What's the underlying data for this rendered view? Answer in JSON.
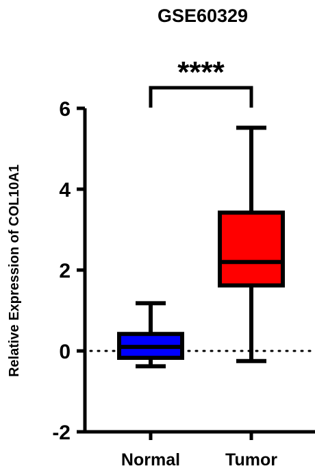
{
  "chart_data": {
    "type": "box",
    "title": "GSE60329",
    "xlabel": "",
    "ylabel": "Relative Expression of COL10A1",
    "ylim": [
      -2,
      6
    ],
    "yticks": [
      "6",
      "4",
      "2",
      "0",
      "-2"
    ],
    "ytick_values": [
      6,
      4,
      2,
      0,
      -2
    ],
    "categories": [
      "Normal",
      "Tumor"
    ],
    "series": [
      {
        "category": "Normal",
        "min": -0.38,
        "q1": -0.17,
        "median": 0.1,
        "q3": 0.42,
        "max": 1.18,
        "color": "#0000ff"
      },
      {
        "category": "Tumor",
        "min": -0.25,
        "q1": 1.62,
        "median": 2.2,
        "q3": 3.42,
        "max": 5.52,
        "color": "#ff0000"
      }
    ],
    "reference_line": {
      "y": 0,
      "style": "dotted"
    },
    "significance": {
      "label": "****",
      "between": [
        "Normal",
        "Tumor"
      ]
    }
  }
}
